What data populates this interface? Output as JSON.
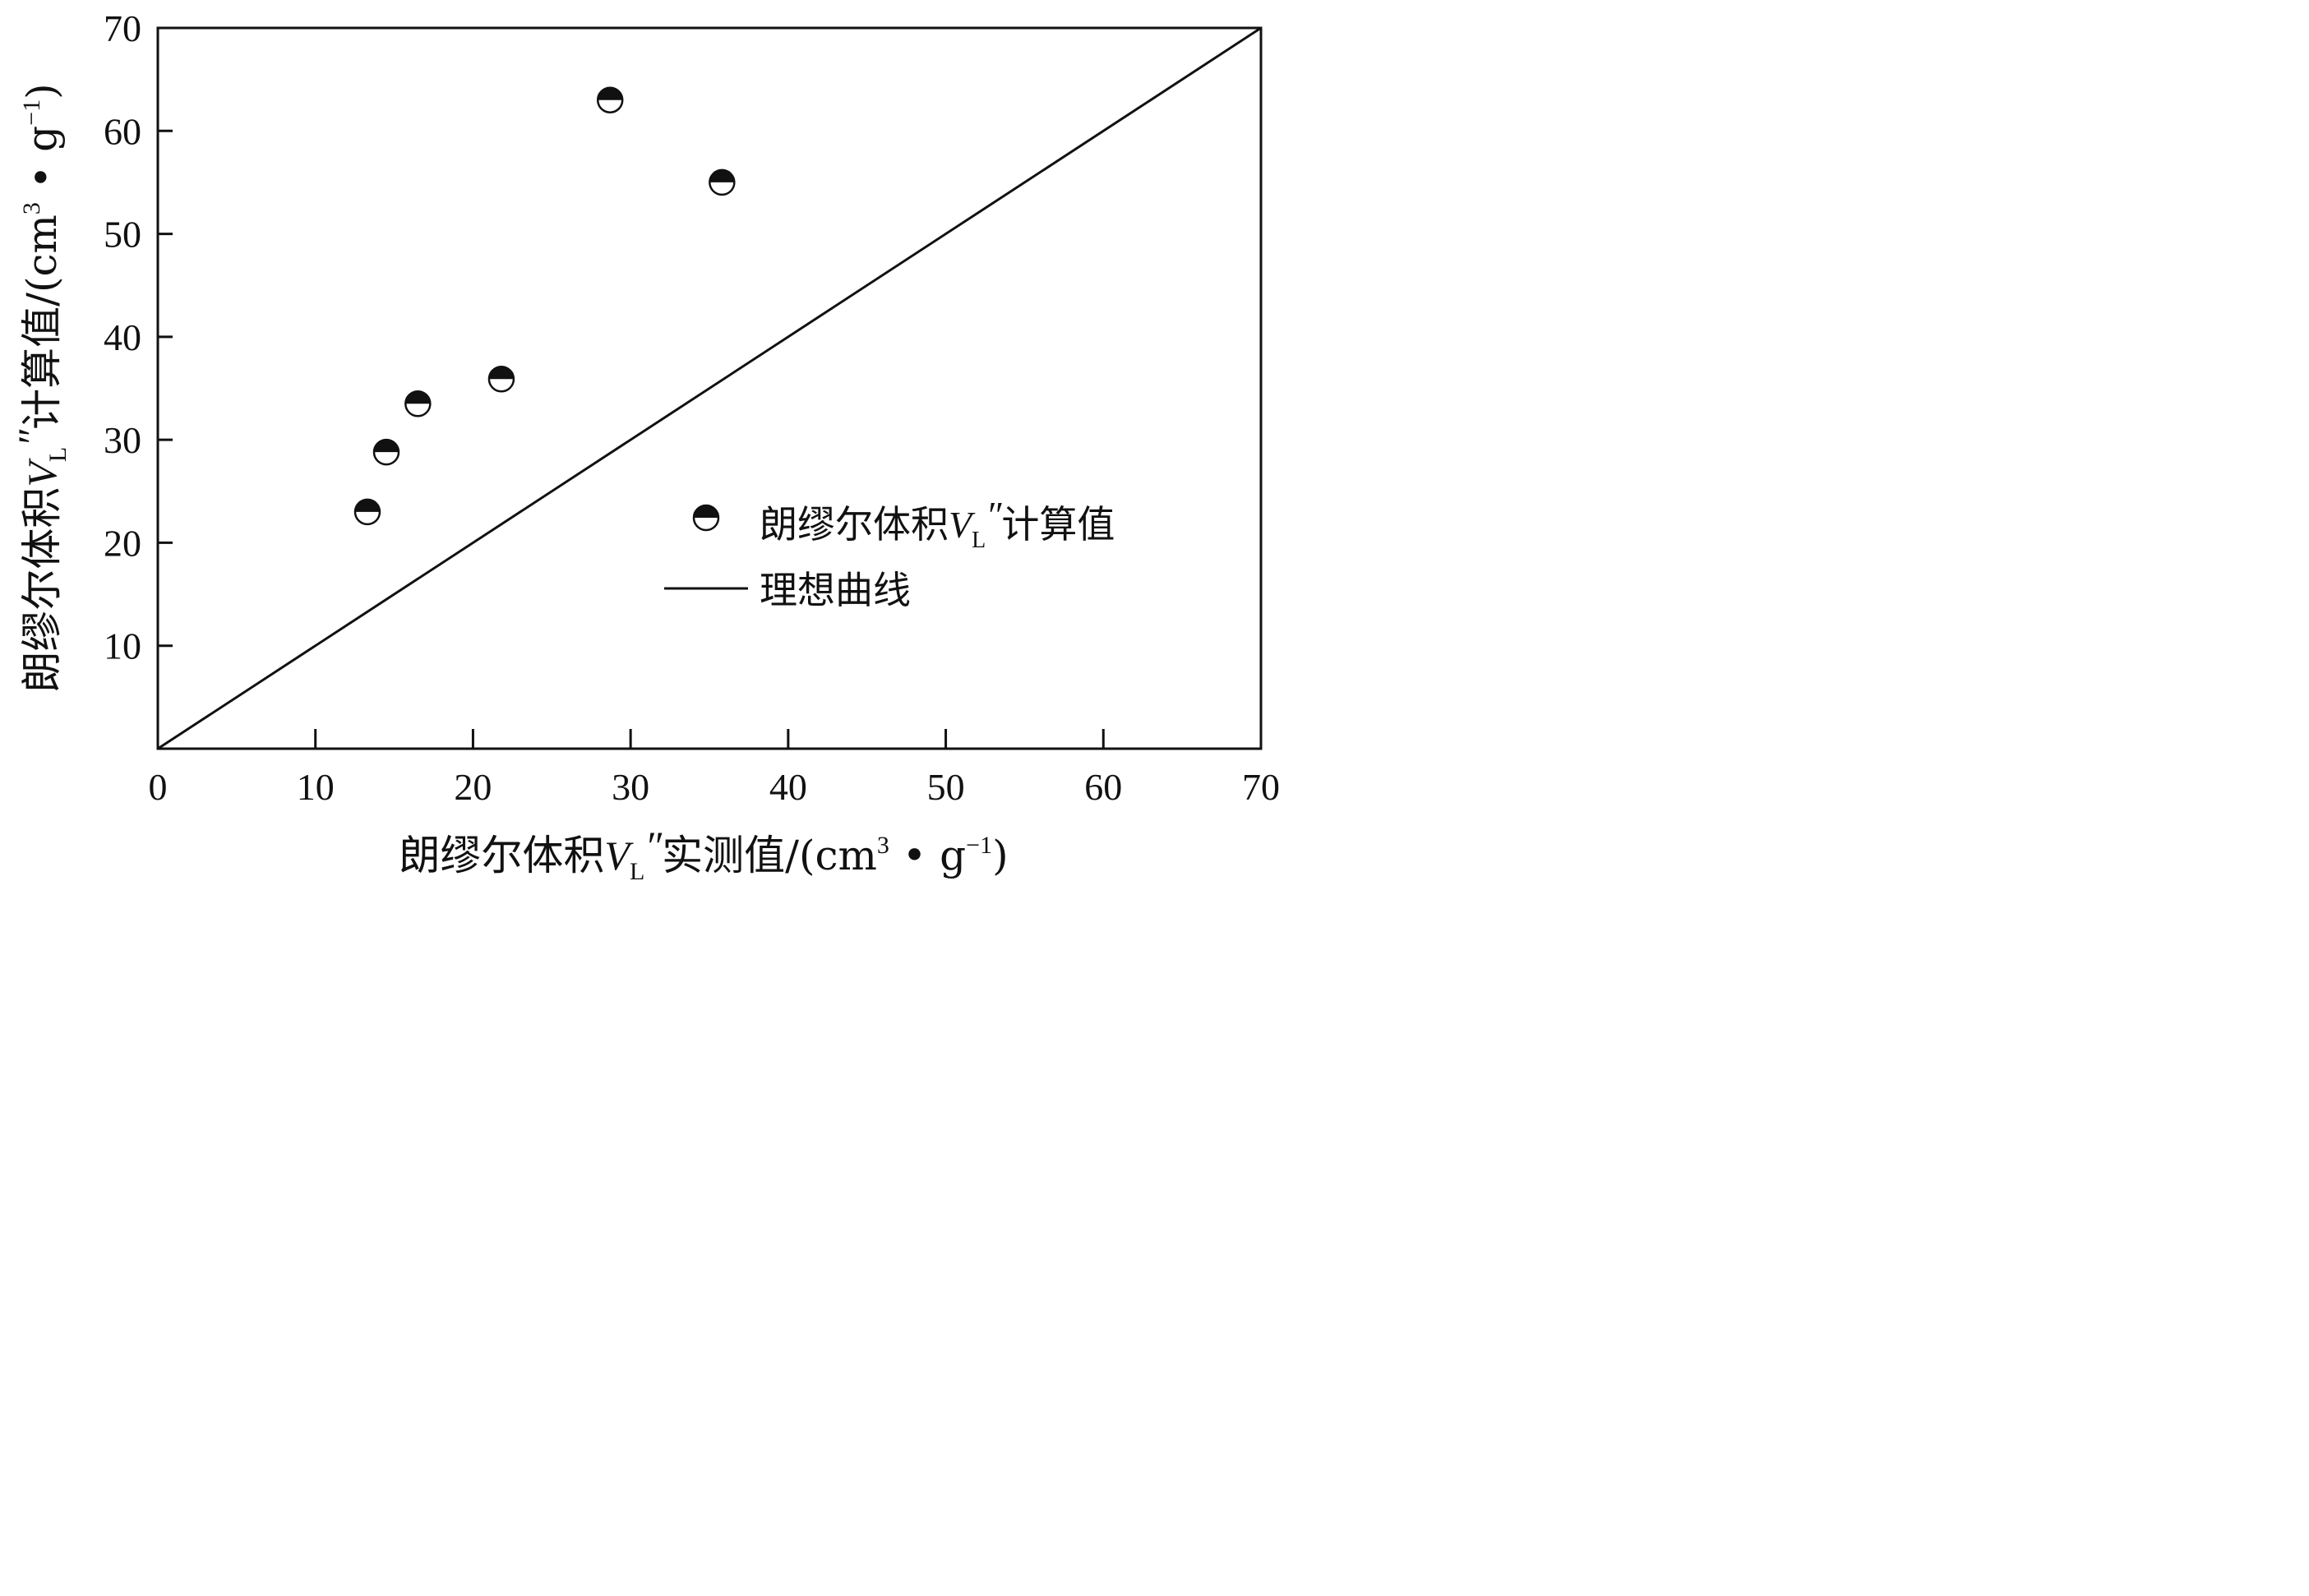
{
  "chart_data": {
    "type": "scatter",
    "xlabel": {
      "pre": "朗缪尔体积",
      "var": "V",
      "sub": "L",
      "prime": "″",
      "post": "实测值/(cm",
      "sup1": "3",
      "mid": " • g",
      "sup2": "−1",
      "end": ")"
    },
    "ylabel": {
      "pre": "朗缪尔体积",
      "var": "V",
      "sub": "L",
      "prime": "″",
      "post": "计算值/(cm",
      "sup1": "3",
      "mid": " • g",
      "sup2": "−1",
      "end": ")"
    },
    "xlim": [
      0,
      70
    ],
    "ylim": [
      0,
      70
    ],
    "xticks": [
      0,
      10,
      20,
      30,
      40,
      50,
      60,
      70
    ],
    "yticks": [
      10,
      20,
      30,
      40,
      50,
      60,
      70
    ],
    "grid": false,
    "legend_position": "right",
    "series": [
      {
        "name_pre": "朗缪尔体积",
        "name_var": "V",
        "name_sub": "L",
        "name_prime": "″",
        "name_post": "计算值",
        "marker": "half-filled-circle",
        "points": [
          {
            "x": 13.3,
            "y": 23.0
          },
          {
            "x": 14.5,
            "y": 28.8
          },
          {
            "x": 16.5,
            "y": 33.5
          },
          {
            "x": 21.8,
            "y": 35.9
          },
          {
            "x": 28.7,
            "y": 63.0
          },
          {
            "x": 35.8,
            "y": 55.0
          }
        ]
      },
      {
        "name": "理想曲线",
        "type": "line",
        "points": [
          {
            "x": 0,
            "y": 0
          },
          {
            "x": 70,
            "y": 70
          }
        ]
      }
    ],
    "colors": {
      "ink": "#111111",
      "background": "#ffffff"
    }
  }
}
